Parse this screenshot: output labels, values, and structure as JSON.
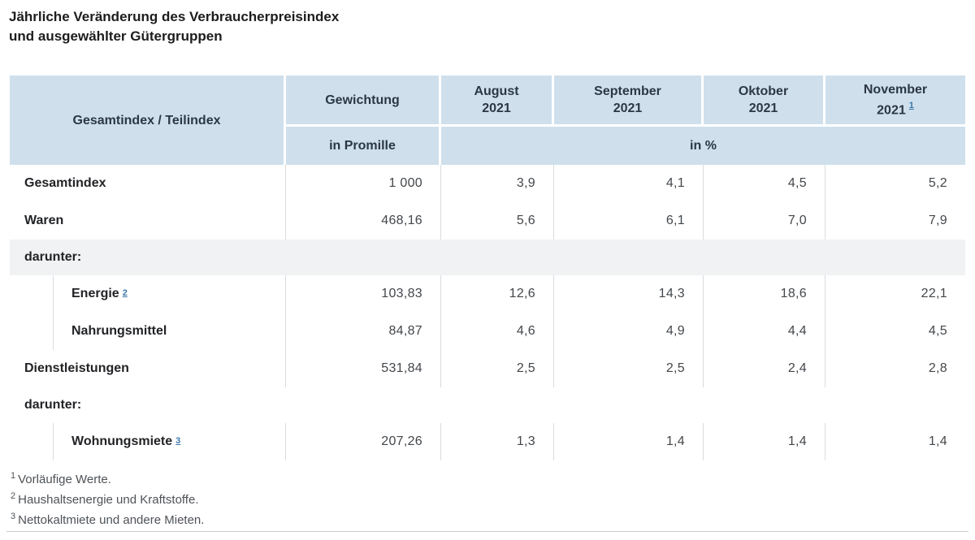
{
  "title": {
    "line1": "Jährliche Veränderung des Verbraucherpreisindex",
    "line2": "und ausgewählter Gütergruppen"
  },
  "table": {
    "header": {
      "stub": "Gesamtindex / Teilindex",
      "weight_col": "Gewichtung",
      "months": [
        {
          "name": "August",
          "year": "2021"
        },
        {
          "name": "September",
          "year": "2021"
        },
        {
          "name": "Oktober",
          "year": "2021"
        },
        {
          "name": "November",
          "year": "2021",
          "marker": "1"
        }
      ],
      "weight_unit": "in Promille",
      "values_unit": "in %"
    },
    "rows": [
      {
        "label": "Gesamtindex",
        "indent": false,
        "weight": "1 000",
        "values": [
          "3,9",
          "4,1",
          "4,5",
          "5,2"
        ]
      },
      {
        "label": "Waren",
        "indent": false,
        "weight": "468,16",
        "values": [
          "5,6",
          "6,1",
          "7,0",
          "7,9"
        ]
      },
      {
        "type": "section",
        "label": "darunter:",
        "shaded": true
      },
      {
        "label": "Energie",
        "marker": "2",
        "indent": true,
        "weight": "103,83",
        "values": [
          "12,6",
          "14,3",
          "18,6",
          "22,1"
        ]
      },
      {
        "label": "Nahrungsmittel",
        "indent": true,
        "weight": "84,87",
        "values": [
          "4,6",
          "4,9",
          "4,4",
          "4,5"
        ]
      },
      {
        "label": "Dienstleistungen",
        "indent": false,
        "weight": "531,84",
        "values": [
          "2,5",
          "2,5",
          "2,4",
          "2,8"
        ]
      },
      {
        "type": "section",
        "label": "darunter:",
        "shaded": false
      },
      {
        "label": "Wohnungsmiete",
        "marker": "3",
        "indent": true,
        "weight": "207,26",
        "values": [
          "1,3",
          "1,4",
          "1,4",
          "1,4"
        ]
      }
    ],
    "footnotes": [
      {
        "marker": "1",
        "text": "Vorläufige Werte."
      },
      {
        "marker": "2",
        "text": "Haushaltsenergie und Kraftstoffe."
      },
      {
        "marker": "3",
        "text": "Nettokaltmiete und andere Mieten."
      }
    ]
  },
  "colors": {
    "header_bg": "#cfe0ec",
    "section_bg": "#f0f2f3",
    "divider": "#d9dcde",
    "link_blue": "#3d77ab",
    "text_dark": "#222326"
  },
  "chart_data": {
    "type": "table",
    "title": "Jährliche Veränderung des Verbraucherpreisindex und ausgewählter Gütergruppen",
    "columns": [
      "Gesamtindex / Teilindex",
      "Gewichtung in Promille",
      "August 2021 in %",
      "September 2021 in %",
      "Oktober 2021 in %",
      "November 2021 in %"
    ],
    "rows": [
      [
        "Gesamtindex",
        1000,
        3.9,
        4.1,
        4.5,
        5.2
      ],
      [
        "Waren",
        468.16,
        5.6,
        6.1,
        7.0,
        7.9
      ],
      [
        "darunter: Energie",
        103.83,
        12.6,
        14.3,
        18.6,
        22.1
      ],
      [
        "darunter: Nahrungsmittel",
        84.87,
        4.6,
        4.9,
        4.4,
        4.5
      ],
      [
        "Dienstleistungen",
        531.84,
        2.5,
        2.5,
        2.4,
        2.8
      ],
      [
        "darunter: Wohnungsmiete",
        207.26,
        1.3,
        1.4,
        1.4,
        1.4
      ]
    ],
    "footnotes": [
      "1 Vorläufige Werte.",
      "2 Haushaltsenergie und Kraftstoffe.",
      "3 Nettokaltmiete und andere Mieten."
    ]
  }
}
